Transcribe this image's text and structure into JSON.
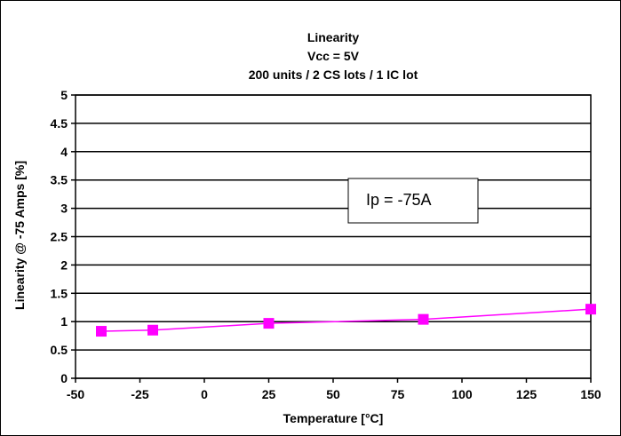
{
  "chart_data": {
    "type": "line",
    "title_lines": [
      "Linearity",
      "Vcc = 5V",
      "200 units / 2 CS lots / 1 IC lot"
    ],
    "xlabel": "Temperature [°C]",
    "ylabel": "Linearity @ -75 Amps [%]",
    "xlim": [
      -50,
      150
    ],
    "ylim": [
      0,
      5
    ],
    "x_ticks": [
      "-50",
      "-25",
      "0",
      "25",
      "50",
      "75",
      "100",
      "125",
      "150"
    ],
    "y_ticks": [
      "0",
      "0.5",
      "1",
      "1.5",
      "2",
      "2.5",
      "3",
      "3.5",
      "4",
      "4.5",
      "5"
    ],
    "grid": "horizontal",
    "series": [
      {
        "x": [
          -40,
          -20,
          25,
          85,
          150
        ],
        "values": [
          0.83,
          0.85,
          0.97,
          1.04,
          1.22
        ],
        "color": "#ff00ff",
        "marker": "square"
      }
    ],
    "annotation": "Ip = -75A"
  }
}
